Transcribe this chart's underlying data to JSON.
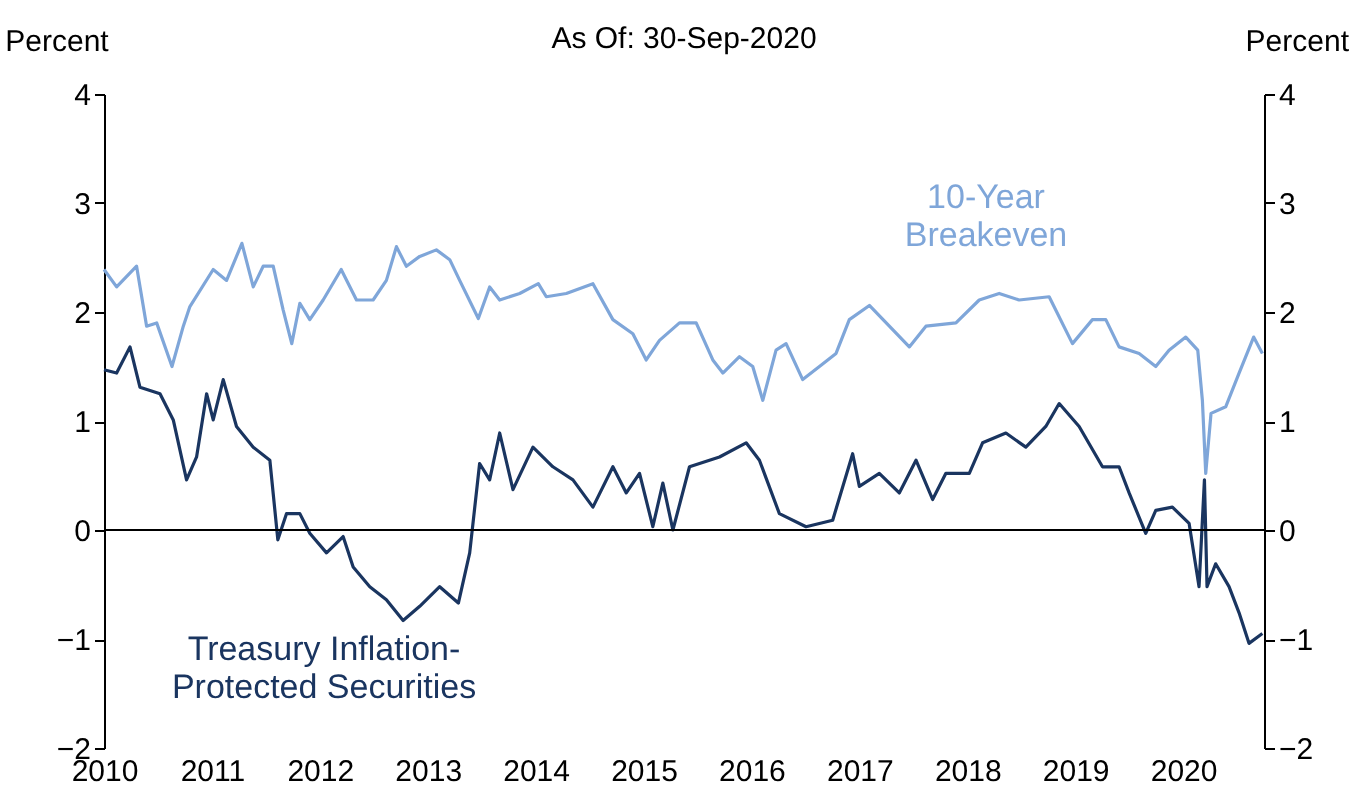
{
  "chart_data": {
    "type": "line",
    "title": "As Of: 30-Sep-2020",
    "ylabel": "Percent",
    "y2label": "Percent",
    "xlim": [
      2010,
      2020.75
    ],
    "xticks": [
      2010,
      2011,
      2012,
      2013,
      2014,
      2015,
      2016,
      2017,
      2018,
      2019,
      2020
    ],
    "ylim": [
      -2,
      4
    ],
    "yticks": [
      -2,
      -1,
      0,
      1,
      2,
      3,
      4
    ],
    "y2lim": [
      -2,
      4
    ],
    "y2ticks": [
      -2,
      -1,
      0,
      1,
      2,
      3,
      4
    ],
    "grid": false,
    "legend": false,
    "marker": "none",
    "line_style": "solid",
    "ref_lines": [
      {
        "axis": "y",
        "value": 0,
        "color": "#000000"
      }
    ],
    "series": [
      {
        "name": "10-Year\nBreakeven",
        "color": "#7fa6d9",
        "x": [
          2010.0,
          2010.117,
          2010.302,
          2010.395,
          2010.488,
          2010.63,
          2010.735,
          2010.796,
          2011.012,
          2011.136,
          2011.278,
          2011.383,
          2011.475,
          2011.568,
          2011.66,
          2011.74,
          2011.815,
          2011.907,
          2012.031,
          2012.198,
          2012.34,
          2012.494,
          2012.617,
          2012.71,
          2012.802,
          2012.926,
          2013.08,
          2013.204,
          2013.296,
          2013.469,
          2013.574,
          2013.667,
          2013.852,
          2014.025,
          2014.099,
          2014.284,
          2014.531,
          2014.716,
          2014.901,
          2015.025,
          2015.148,
          2015.333,
          2015.488,
          2015.642,
          2015.735,
          2015.889,
          2016.012,
          2016.105,
          2016.228,
          2016.321,
          2016.475,
          2016.63,
          2016.784,
          2016.907,
          2017.093,
          2017.278,
          2017.463,
          2017.617,
          2017.895,
          2018.111,
          2018.296,
          2018.481,
          2018.759,
          2018.975,
          2019.16,
          2019.284,
          2019.407,
          2019.593,
          2019.747,
          2019.87,
          2020.025,
          2020.136,
          2020.179,
          2020.21,
          2020.259,
          2020.395,
          2020.519,
          2020.654,
          2020.735
        ],
        "values": [
          2.39,
          2.23,
          2.42,
          1.87,
          1.9,
          1.5,
          1.87,
          2.05,
          2.39,
          2.29,
          2.63,
          2.23,
          2.42,
          2.42,
          2.02,
          1.71,
          2.08,
          1.93,
          2.11,
          2.39,
          2.11,
          2.11,
          2.29,
          2.6,
          2.42,
          2.51,
          2.57,
          2.48,
          2.29,
          1.94,
          2.23,
          2.11,
          2.17,
          2.26,
          2.14,
          2.17,
          2.26,
          1.93,
          1.8,
          1.56,
          1.74,
          1.9,
          1.9,
          1.56,
          1.44,
          1.59,
          1.5,
          1.19,
          1.65,
          1.71,
          1.38,
          1.5,
          1.62,
          1.93,
          2.06,
          1.87,
          1.68,
          1.87,
          1.9,
          2.11,
          2.17,
          2.11,
          2.14,
          1.71,
          1.93,
          1.93,
          1.68,
          1.62,
          1.5,
          1.65,
          1.77,
          1.65,
          1.19,
          0.52,
          1.07,
          1.13,
          1.44,
          1.77,
          1.62
        ]
      },
      {
        "name": "Treasury Inflation-\nProtected Securities",
        "color": "#1a3560",
        "x": [
          2010.0,
          2010.117,
          2010.241,
          2010.333,
          2010.519,
          2010.642,
          2010.765,
          2010.858,
          2010.951,
          2011.012,
          2011.105,
          2011.228,
          2011.383,
          2011.537,
          2011.611,
          2011.691,
          2011.815,
          2011.907,
          2012.062,
          2012.216,
          2012.309,
          2012.463,
          2012.617,
          2012.772,
          2012.926,
          2013.111,
          2013.284,
          2013.389,
          2013.481,
          2013.574,
          2013.667,
          2013.79,
          2013.975,
          2014.16,
          2014.346,
          2014.531,
          2014.716,
          2014.84,
          2014.963,
          2015.086,
          2015.179,
          2015.272,
          2015.426,
          2015.704,
          2015.951,
          2016.074,
          2016.259,
          2016.506,
          2016.753,
          2016.938,
          2017.0,
          2017.185,
          2017.37,
          2017.525,
          2017.679,
          2017.802,
          2018.019,
          2018.142,
          2018.358,
          2018.543,
          2018.728,
          2018.852,
          2019.037,
          2019.253,
          2019.407,
          2019.5,
          2019.654,
          2019.747,
          2019.901,
          2020.056,
          2020.148,
          2020.198,
          2020.222,
          2020.302,
          2020.426,
          2020.519,
          2020.611,
          2020.735
        ],
        "values": [
          1.47,
          1.44,
          1.68,
          1.31,
          1.25,
          1.01,
          0.46,
          0.67,
          1.25,
          1.01,
          1.38,
          0.95,
          0.76,
          0.64,
          -0.09,
          0.15,
          0.15,
          -0.03,
          -0.21,
          -0.06,
          -0.34,
          -0.52,
          -0.64,
          -0.83,
          -0.7,
          -0.52,
          -0.67,
          -0.21,
          0.61,
          0.46,
          0.89,
          0.37,
          0.76,
          0.58,
          0.46,
          0.21,
          0.58,
          0.34,
          0.52,
          0.03,
          0.43,
          0.0,
          0.58,
          0.67,
          0.8,
          0.64,
          0.15,
          0.03,
          0.09,
          0.7,
          0.4,
          0.52,
          0.34,
          0.64,
          0.28,
          0.52,
          0.52,
          0.8,
          0.89,
          0.76,
          0.95,
          1.16,
          0.95,
          0.58,
          0.58,
          0.34,
          -0.03,
          0.18,
          0.21,
          0.06,
          -0.52,
          0.46,
          -0.52,
          -0.31,
          -0.52,
          -0.76,
          -1.04,
          -0.95
        ]
      }
    ]
  }
}
